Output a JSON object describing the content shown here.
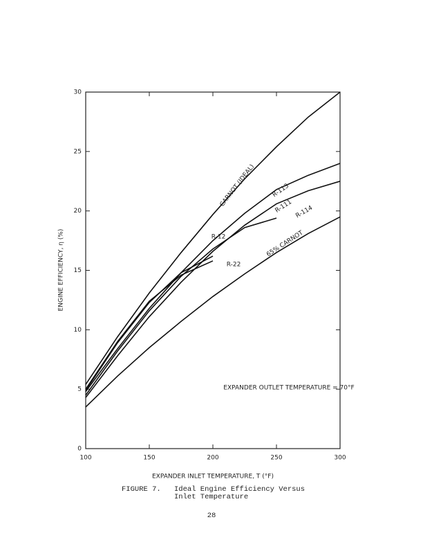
{
  "chart_data": {
    "type": "line",
    "y_label": "ENGINE EFFICIENCY, η (%)",
    "x_label": "EXPANDER INLET TEMPERATURE, T (°F)",
    "annotation": "EXPANDER OUTLET TEMPERATURE = 70°F",
    "x": [
      100,
      125,
      150,
      175,
      200,
      225,
      250,
      275,
      300
    ],
    "series": [
      {
        "name": "CARNOT (IDEAL)",
        "color": "#111111",
        "values": [
          5.4,
          9.4,
          13.1,
          16.5,
          19.7,
          22.7,
          25.4,
          27.9,
          30.0
        ]
      },
      {
        "name": "R-113",
        "color": "#111111",
        "values": [
          4.8,
          8.4,
          11.8,
          14.8,
          17.5,
          19.8,
          21.8,
          23.0,
          24.0
        ]
      },
      {
        "name": "R-111",
        "color": "#111111",
        "values": [
          4.3,
          7.8,
          11.1,
          14.0,
          16.6,
          18.8,
          20.6,
          21.7,
          22.5
        ]
      },
      {
        "name": "R-114",
        "color": "#111111",
        "values": [
          4.5,
          8.2,
          11.6,
          14.5,
          16.8,
          18.6,
          19.4,
          null,
          null
        ]
      },
      {
        "name": "R-12",
        "color": "#111111",
        "values": [
          4.9,
          8.9,
          12.3,
          14.8,
          16.2,
          null,
          null,
          null,
          null
        ]
      },
      {
        "name": "R-22",
        "color": "#111111",
        "values": [
          5.0,
          9.0,
          12.4,
          14.6,
          15.8,
          null,
          null,
          null,
          null
        ]
      },
      {
        "name": "65% CARNOT",
        "color": "#111111",
        "values": [
          3.5,
          6.1,
          8.5,
          10.7,
          12.8,
          14.7,
          16.5,
          18.1,
          19.5
        ]
      }
    ],
    "xlim": [
      100,
      300
    ],
    "xticks": [
      100,
      150,
      200,
      250,
      300
    ],
    "ylim": [
      0,
      30
    ],
    "yticks": [
      0,
      5,
      10,
      15,
      20,
      25,
      30
    ]
  },
  "caption": {
    "label": "FIGURE 7.",
    "text": "Ideal Engine Efficiency Versus Inlet Temperature"
  },
  "page_number": "28"
}
